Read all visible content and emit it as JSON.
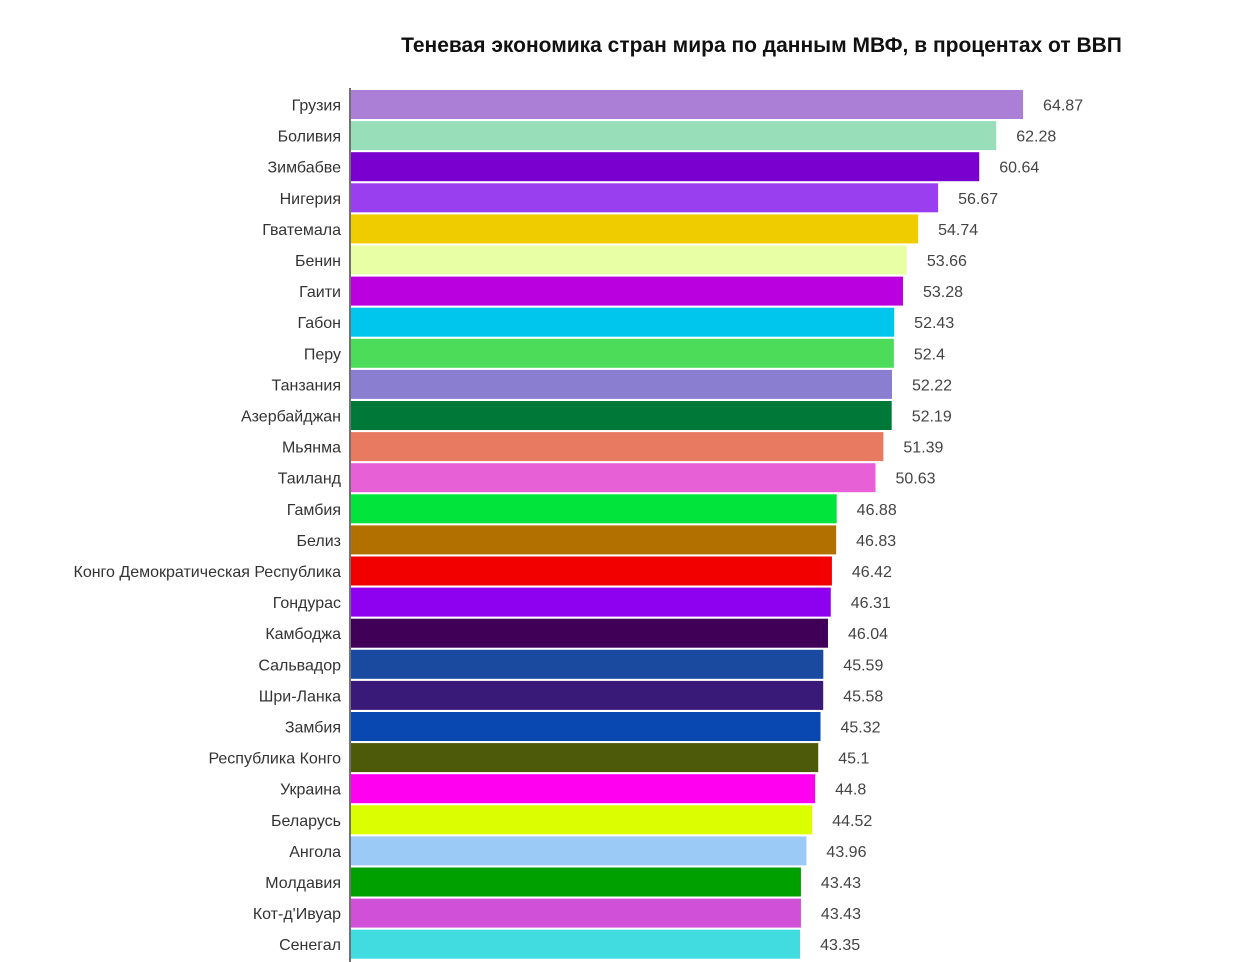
{
  "chart_data": {
    "type": "bar",
    "orientation": "horizontal",
    "title": "Теневая экономика стран мира по данным МВФ, в процентах от ВВП",
    "categories": [
      "Грузия",
      "Боливия",
      "Зимбабве",
      "Нигерия",
      "Гватемала",
      "Бенин",
      "Гаити",
      "Габон",
      "Перу",
      "Танзания",
      "Азербайджан",
      "Мьянма",
      "Таиланд",
      "Гамбия",
      "Белиз",
      "Конго Демократическая Республика",
      "Гондурас",
      "Камбоджа",
      "Сальвадор",
      "Шри-Ланка",
      "Замбия",
      "Республика Конго",
      "Украина",
      "Беларусь",
      "Ангола",
      "Молдавия",
      "Кот-д'Ивуар",
      "Сенегал"
    ],
    "values": [
      64.87,
      62.28,
      60.64,
      56.67,
      54.74,
      53.66,
      53.28,
      52.43,
      52.4,
      52.22,
      52.19,
      51.39,
      50.63,
      46.88,
      46.83,
      46.42,
      46.31,
      46.04,
      45.59,
      45.58,
      45.32,
      45.1,
      44.8,
      44.52,
      43.96,
      43.43,
      43.43,
      43.35
    ],
    "value_labels": [
      "64.87",
      "62.28",
      "60.64",
      "56.67",
      "54.74",
      "53.66",
      "53.28",
      "52.43",
      "52.4",
      "52.22",
      "52.19",
      "51.39",
      "50.63",
      "46.88",
      "46.83",
      "46.42",
      "46.31",
      "46.04",
      "45.59",
      "45.58",
      "45.32",
      "45.1",
      "44.8",
      "44.52",
      "43.96",
      "43.43",
      "43.43",
      "43.35"
    ],
    "colors": [
      "#ab7fd6",
      "#98deb8",
      "#7a00d0",
      "#9a3ff0",
      "#efcc00",
      "#e9ffa6",
      "#bb00e0",
      "#00c6ee",
      "#4cdc5a",
      "#8a7ed0",
      "#007838",
      "#e87a62",
      "#e760d6",
      "#00e43c",
      "#b27000",
      "#f20000",
      "#8e00f0",
      "#400058",
      "#1a4aa0",
      "#3a1a78",
      "#0848b0",
      "#4c5a0a",
      "#ff00f0",
      "#dcff00",
      "#9ccaf6",
      "#00a000",
      "#d050d8",
      "#40dce0"
    ],
    "xlim": [
      0,
      65
    ],
    "grid": false,
    "legend": "none"
  }
}
